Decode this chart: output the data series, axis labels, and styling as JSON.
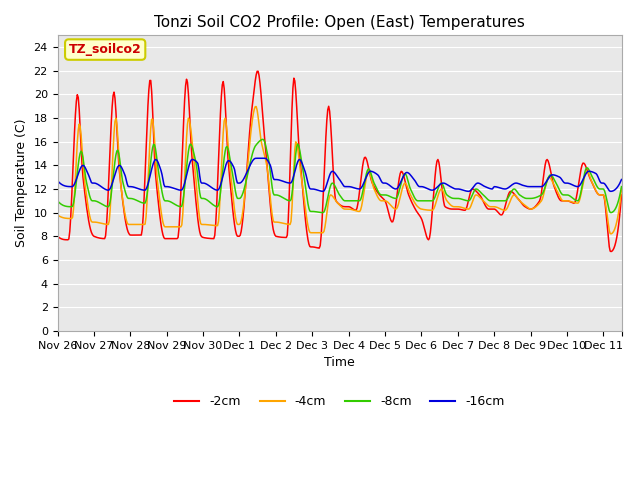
{
  "title": "Tonzi Soil CO2 Profile: Open (East) Temperatures",
  "xlabel": "Time",
  "ylabel": "Soil Temperature (C)",
  "ylim": [
    0,
    25
  ],
  "yticks": [
    0,
    2,
    4,
    6,
    8,
    10,
    12,
    14,
    16,
    18,
    20,
    22,
    24
  ],
  "series": {
    "-2cm": {
      "color": "#ff0000",
      "linewidth": 1.1
    },
    "-4cm": {
      "color": "#ffa500",
      "linewidth": 1.1
    },
    "-8cm": {
      "color": "#33cc00",
      "linewidth": 1.1
    },
    "-16cm": {
      "color": "#0000dd",
      "linewidth": 1.1
    }
  },
  "legend_box_color": "#ffffcc",
  "legend_box_edge": "#cccc00",
  "annotation_text": "TZ_soilco2",
  "annotation_color": "#cc0000",
  "bg_color": "#e8e8e8",
  "grid_color": "#ffffff",
  "fig_bg_color": "#ffffff"
}
